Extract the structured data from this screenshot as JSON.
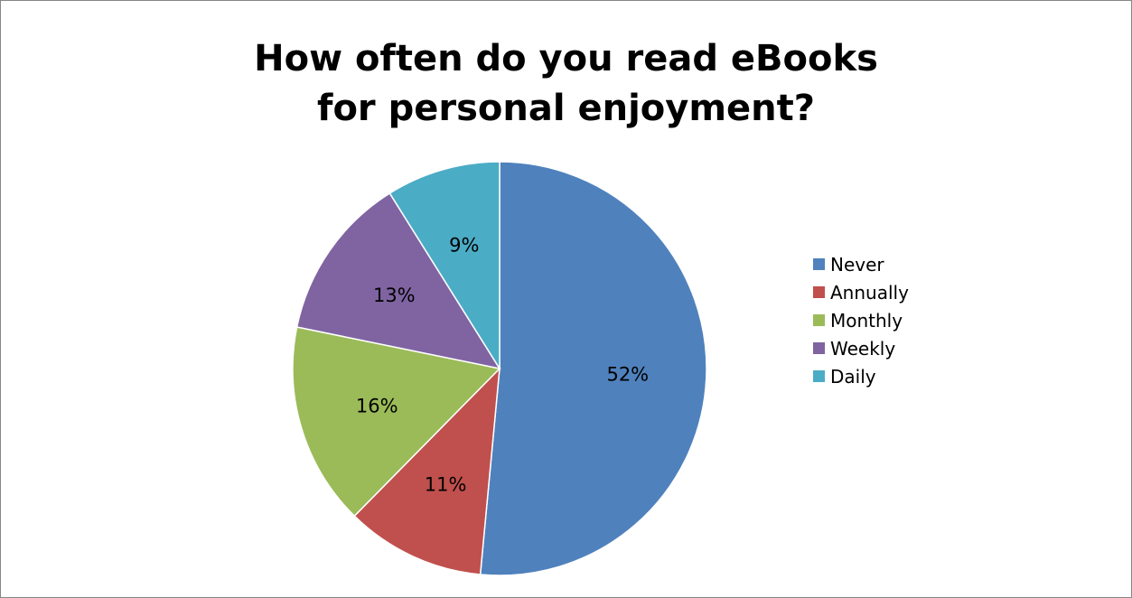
{
  "chart_data": {
    "type": "pie",
    "title": "How often do you read eBooks for personal enjoyment?",
    "title_lines": [
      "How often do you read eBooks",
      "for personal enjoyment?"
    ],
    "start_angle_deg": 0,
    "direction": "clockwise",
    "legend_position": "right",
    "slices": [
      {
        "name": "Never",
        "value": 52,
        "label": "52%",
        "color": "#4F81BD"
      },
      {
        "name": "Annually",
        "value": 11,
        "label": "11%",
        "color": "#C0504D"
      },
      {
        "name": "Monthly",
        "value": 16,
        "label": "16%",
        "color": "#9BBB59"
      },
      {
        "name": "Weekly",
        "value": 13,
        "label": "13%",
        "color": "#8064A2"
      },
      {
        "name": "Daily",
        "value": 9,
        "label": "9%",
        "color": "#4BACC6"
      }
    ]
  }
}
